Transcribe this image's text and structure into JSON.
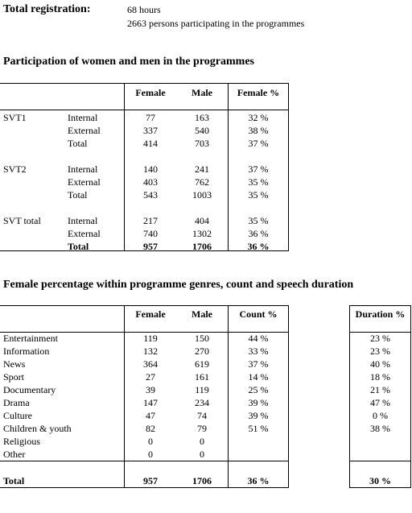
{
  "registration": {
    "label": "Total registration:",
    "hours": "68 hours",
    "persons": "2663 persons participating in the programmes"
  },
  "table1": {
    "title": "Participation of women and men in the programmes",
    "headers": [
      "Female",
      "Male",
      "Female %"
    ],
    "rows": [
      [
        "SVT1",
        "Internal",
        "77",
        "163",
        "32 %"
      ],
      [
        "",
        "External",
        "337",
        "540",
        "38 %"
      ],
      [
        "",
        "Total",
        "414",
        "703",
        "37 %"
      ],
      [
        "SVT2",
        "Internal",
        "140",
        "241",
        "37 %"
      ],
      [
        "",
        "External",
        "403",
        "762",
        "35 %"
      ],
      [
        "",
        "Total",
        "543",
        "1003",
        "35 %"
      ],
      [
        "SVT total",
        "Internal",
        "217",
        "404",
        "35 %"
      ],
      [
        "",
        "External",
        "740",
        "1302",
        "36 %"
      ],
      [
        "",
        "Total",
        "957",
        "1706",
        "36 %"
      ]
    ]
  },
  "table2": {
    "title": "Female percentage within programme genres, count and speech duration",
    "headers": [
      "Female",
      "Male",
      "Count %",
      "Duration %"
    ],
    "rows": [
      [
        "Entertainment",
        "119",
        "150",
        "44 %",
        "23 %"
      ],
      [
        "Information",
        "132",
        "270",
        "33 %",
        "23 %"
      ],
      [
        "News",
        "364",
        "619",
        "37 %",
        "40 %"
      ],
      [
        "Sport",
        "27",
        "161",
        "14 %",
        "18 %"
      ],
      [
        "Documentary",
        "39",
        "119",
        "25 %",
        "21 %"
      ],
      [
        "Drama",
        "147",
        "234",
        "39 %",
        "47 %"
      ],
      [
        "Culture",
        "47",
        "74",
        "39 %",
        "0 %"
      ],
      [
        "Children & youth",
        "82",
        "79",
        "51 %",
        "38 %"
      ],
      [
        "Religious",
        "0",
        "0",
        "",
        ""
      ],
      [
        "Other",
        "0",
        "0",
        "",
        ""
      ]
    ],
    "total": [
      "Total",
      "957",
      "1706",
      "36 %",
      "30 %"
    ]
  }
}
